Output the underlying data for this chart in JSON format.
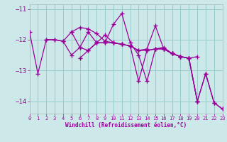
{
  "bg_color": "#cce8e8",
  "line_color": "#990099",
  "grid_color": "#99cccc",
  "xlabel": "Windchill (Refroidissement éolien,°C)",
  "xlim": [
    0,
    23
  ],
  "ylim": [
    -14.4,
    -10.85
  ],
  "yticks": [
    -14,
    -13,
    -12,
    -11
  ],
  "xticks": [
    0,
    1,
    2,
    3,
    4,
    5,
    6,
    7,
    8,
    9,
    10,
    11,
    12,
    13,
    14,
    15,
    16,
    17,
    18,
    19,
    20,
    21,
    22,
    23
  ],
  "series": [
    {
      "x": [
        0,
        1,
        2,
        3,
        4,
        5,
        6,
        7,
        8,
        9,
        10,
        11,
        12,
        13,
        14,
        15,
        16,
        17,
        18,
        19,
        20,
        21,
        22,
        23
      ],
      "y": [
        -11.75,
        -13.1,
        -12.0,
        -12.0,
        -12.05,
        -12.5,
        -12.25,
        -12.35,
        -12.1,
        -12.1,
        -11.5,
        -11.15,
        -12.1,
        -12.5,
        -13.35,
        -12.3,
        -12.25,
        -12.45,
        -12.55,
        -12.6,
        -14.0,
        -13.1,
        -14.05,
        -14.25
      ]
    },
    {
      "x": [
        2,
        3,
        4,
        5,
        6,
        7,
        8,
        9,
        10,
        11,
        12,
        13,
        14,
        15,
        16,
        17,
        18,
        19,
        20
      ],
      "y": [
        -12.0,
        -12.0,
        -12.05,
        -11.75,
        -11.6,
        -11.65,
        -11.8,
        -12.05,
        -12.1,
        -12.15,
        -12.2,
        -12.35,
        -12.3,
        -11.55,
        -12.3,
        -12.45,
        -12.55,
        -12.6,
        -12.55
      ]
    },
    {
      "x": [
        5,
        6,
        7,
        8,
        9,
        10,
        11,
        12,
        13,
        14,
        15,
        16,
        17,
        18,
        19,
        20
      ],
      "y": [
        -11.75,
        -12.25,
        -11.75,
        -12.1,
        -12.1,
        -12.1,
        -12.15,
        -12.2,
        -13.35,
        -12.35,
        -12.3,
        -12.3,
        -12.45,
        -12.55,
        -12.6,
        -14.0
      ]
    },
    {
      "x": [
        6,
        7,
        8,
        9,
        10,
        11,
        12,
        13,
        14,
        15,
        16,
        17,
        18,
        19,
        20,
        21,
        22,
        23
      ],
      "y": [
        -12.6,
        -12.35,
        -12.1,
        -11.85,
        -12.1,
        -12.15,
        -12.2,
        -12.35,
        -12.35,
        -12.3,
        -12.3,
        -12.45,
        -12.55,
        -12.6,
        -14.0,
        -13.1,
        -14.05,
        -14.25
      ]
    }
  ]
}
